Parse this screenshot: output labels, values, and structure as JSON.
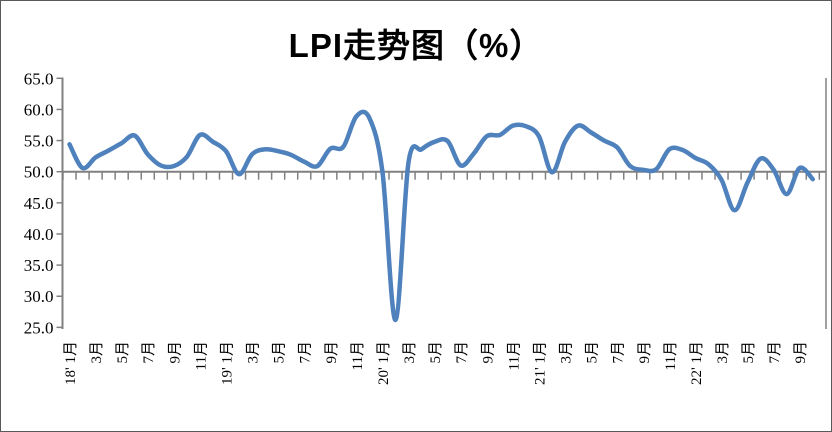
{
  "title": "LPI走势图（%）",
  "chart_data": {
    "type": "line",
    "title": "LPI走势图（%）",
    "description_period": "monthly, 2018-01 to 2022-10",
    "ylim": [
      25,
      65
    ],
    "ytick_step": 5,
    "y_tick_labels": [
      "65.0",
      "60.0",
      "55.0",
      "50.0",
      "45.0",
      "40.0",
      "35.0",
      "30.0",
      "25.0"
    ],
    "x_tick_labels": [
      "18' 1月",
      "3月",
      "5月",
      "7月",
      "9月",
      "11月",
      "19' 1月",
      "3月",
      "5月",
      "7月",
      "9月",
      "11月",
      "20' 1月",
      "3月",
      "5月",
      "7月",
      "9月",
      "11月",
      "21' 1月",
      "3月",
      "5月",
      "7月",
      "9月",
      "11月",
      "22' 1月",
      "3月",
      "5月",
      "7月",
      "9月"
    ],
    "x_label_every_n_months": 2,
    "category_axis_crosses_at": 50.0,
    "grid": "single horizontal line at 50.0",
    "legend": "none",
    "series": [
      {
        "name": "LPI",
        "values": [
          54.4,
          50.6,
          52.3,
          53.4,
          54.6,
          55.8,
          52.8,
          51.0,
          50.9,
          52.4,
          55.9,
          54.8,
          53.3,
          49.6,
          52.8,
          53.6,
          53.3,
          52.7,
          51.6,
          50.9,
          53.7,
          54.0,
          58.9,
          58.6,
          49.9,
          26.2,
          51.5,
          53.6,
          54.8,
          54.9,
          51.0,
          52.9,
          55.7,
          55.9,
          57.4,
          57.3,
          55.7,
          49.9,
          54.8,
          57.4,
          56.3,
          55.0,
          53.9,
          50.9,
          50.3,
          50.4,
          53.6,
          53.5,
          52.2,
          51.2,
          48.7,
          43.8,
          48.3,
          52.1,
          50.3,
          46.4,
          50.6,
          48.8
        ]
      }
    ],
    "colors": {
      "line": "#4F81BD",
      "axis": "#808080",
      "text": "#000000",
      "background": "#FFFFFF"
    },
    "line_style": "smoothed spline, thick, no markers"
  }
}
